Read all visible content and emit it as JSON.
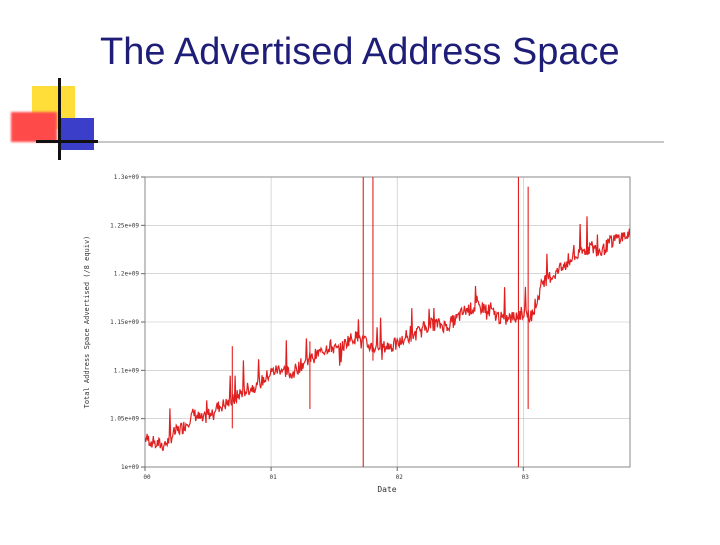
{
  "slide": {
    "title": "The Advertised Address Space"
  },
  "colors": {
    "title": "#1e1e78",
    "series": "#e02020",
    "grid": "#bfbfbf",
    "accent_yellow": "#ffde3a",
    "accent_red": "#ff4a4a",
    "accent_blue": "#3a3ec8"
  },
  "chart_data": {
    "type": "line",
    "title": "",
    "xlabel": "Date",
    "ylabel": "Total Address Space Advertised (/8 equiv)",
    "xlim": [
      0,
      100
    ],
    "ylim": [
      1000000000,
      1300000000
    ],
    "x_ticks": [
      {
        "value": 0,
        "label": "00"
      },
      {
        "value": 26,
        "label": "01"
      },
      {
        "value": 52,
        "label": "02"
      },
      {
        "value": 78,
        "label": "03"
      }
    ],
    "y_ticks": [
      {
        "value": 1000000000,
        "label": "1e+09"
      },
      {
        "value": 1050000000,
        "label": "1.05e+09"
      },
      {
        "value": 1100000000,
        "label": "1.1e+09"
      },
      {
        "value": 1150000000,
        "label": "1.15e+09"
      },
      {
        "value": 1200000000,
        "label": "1.2e+09"
      },
      {
        "value": 1250000000,
        "label": "1.25e+09"
      },
      {
        "value": 1300000000,
        "label": "1.3e+09"
      }
    ],
    "grid": true,
    "series": [
      {
        "x": [
          0,
          2,
          4,
          6,
          8,
          10,
          12,
          14,
          16,
          18,
          20,
          22,
          24,
          26,
          28,
          30,
          32,
          34,
          36,
          38,
          40,
          42,
          44,
          46,
          48,
          50,
          52,
          54,
          56,
          58,
          60,
          62,
          64,
          66,
          68,
          70,
          72,
          74,
          76,
          78,
          80,
          82,
          84,
          86,
          88,
          90,
          92,
          94,
          96,
          98,
          100
        ],
        "y": [
          1030000000,
          1025000000,
          1022000000,
          1035000000,
          1042000000,
          1055000000,
          1048000000,
          1060000000,
          1064000000,
          1068000000,
          1078000000,
          1082000000,
          1088000000,
          1098000000,
          1102000000,
          1096000000,
          1105000000,
          1112000000,
          1118000000,
          1125000000,
          1120000000,
          1132000000,
          1135000000,
          1126000000,
          1122000000,
          1125000000,
          1127000000,
          1133000000,
          1138000000,
          1146000000,
          1148000000,
          1146000000,
          1152000000,
          1162000000,
          1165000000,
          1165000000,
          1158000000,
          1152000000,
          1155000000,
          1160000000,
          1157000000,
          1192000000,
          1198000000,
          1205000000,
          1215000000,
          1222000000,
          1228000000,
          1222000000,
          1233000000,
          1238000000,
          1240000000
        ]
      }
    ],
    "spikes": [
      {
        "x": 45,
        "y_from": 1000000000,
        "y_to": 1300000000
      },
      {
        "x": 47,
        "y_from": 1110000000,
        "y_to": 1300000000
      },
      {
        "x": 77,
        "y_from": 1000000000,
        "y_to": 1300000000
      },
      {
        "x": 79,
        "y_from": 1060000000,
        "y_to": 1290000000
      },
      {
        "x": 18,
        "y_from": 1040000000,
        "y_to": 1125000000
      },
      {
        "x": 34,
        "y_from": 1060000000,
        "y_to": 1130000000
      }
    ]
  }
}
